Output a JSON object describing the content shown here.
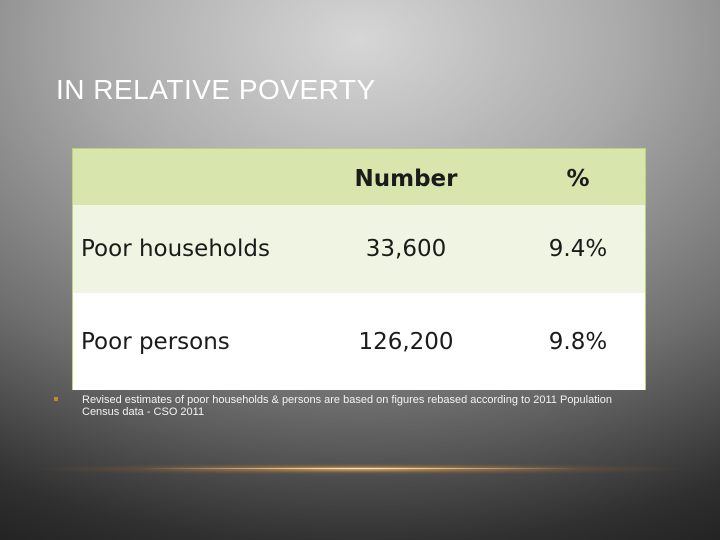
{
  "slide": {
    "title": "IN RELATIVE POVERTY"
  },
  "table": {
    "headers": [
      "",
      "Number",
      "%"
    ],
    "rows": [
      {
        "label": "Poor households",
        "number": "33,600",
        "percent": "9.4%"
      },
      {
        "label": "Poor persons",
        "number": "126,200",
        "percent": "9.8%"
      }
    ]
  },
  "note": {
    "text": "Revised estimates of poor households & persons are based on figures rebased according to 2011 Population Census data  - CSO  2011"
  },
  "colors": {
    "header_bg": "#d8e5ad",
    "row1_bg": "#eff4e3",
    "row2_bg": "#ffffff",
    "table_border": "#bfd27a",
    "bullet": "#c58a2b"
  }
}
